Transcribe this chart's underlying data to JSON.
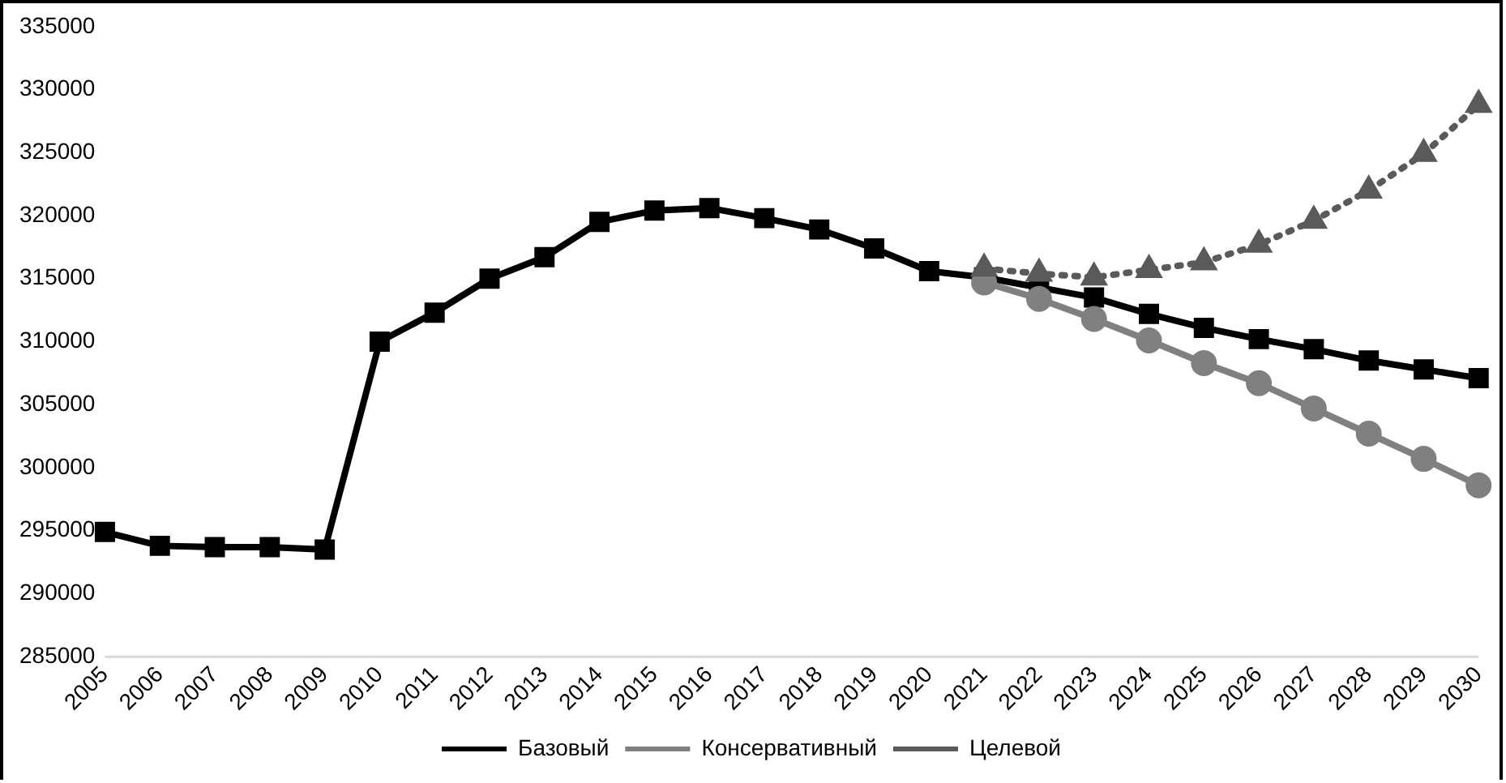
{
  "chart_data": {
    "type": "line",
    "categories": [
      "2005",
      "2006",
      "2007",
      "2008",
      "2009",
      "2010",
      "2011",
      "2012",
      "2013",
      "2014",
      "2015",
      "2016",
      "2017",
      "2018",
      "2019",
      "2020",
      "2021",
      "2022",
      "2023",
      "2024",
      "2025",
      "2026",
      "2027",
      "2028",
      "2029",
      "2030"
    ],
    "ylim": [
      285000,
      335000
    ],
    "yticks": [
      285000,
      290000,
      295000,
      300000,
      305000,
      310000,
      315000,
      320000,
      325000,
      330000,
      335000
    ],
    "grid": false,
    "legend": "bottom",
    "series": [
      {
        "name": "Базовый",
        "color": "#000000",
        "marker": "square",
        "line_style": "solid",
        "values": [
          294900,
          293800,
          293700,
          293700,
          293500,
          310000,
          312300,
          315000,
          316700,
          319500,
          320400,
          320600,
          319800,
          318900,
          317400,
          315600,
          315100,
          314300,
          313500,
          312200,
          311100,
          310200,
          309400,
          308500,
          307800,
          307100
        ]
      },
      {
        "name": "Консервативный",
        "color": "#808080",
        "marker": "circle",
        "line_style": "solid",
        "values": [
          null,
          null,
          null,
          null,
          null,
          null,
          null,
          null,
          null,
          null,
          null,
          null,
          null,
          null,
          null,
          null,
          314700,
          313400,
          311800,
          310100,
          308300,
          306700,
          304700,
          302700,
          300700,
          298600
        ]
      },
      {
        "name": "Целевой",
        "color": "#5a5a5a",
        "marker": "triangle",
        "line_style": "dotted",
        "values": [
          null,
          null,
          null,
          null,
          null,
          null,
          null,
          null,
          null,
          null,
          null,
          null,
          null,
          null,
          null,
          null,
          315800,
          315400,
          315100,
          315700,
          316300,
          317700,
          319600,
          322000,
          324900,
          328800
        ]
      }
    ]
  }
}
